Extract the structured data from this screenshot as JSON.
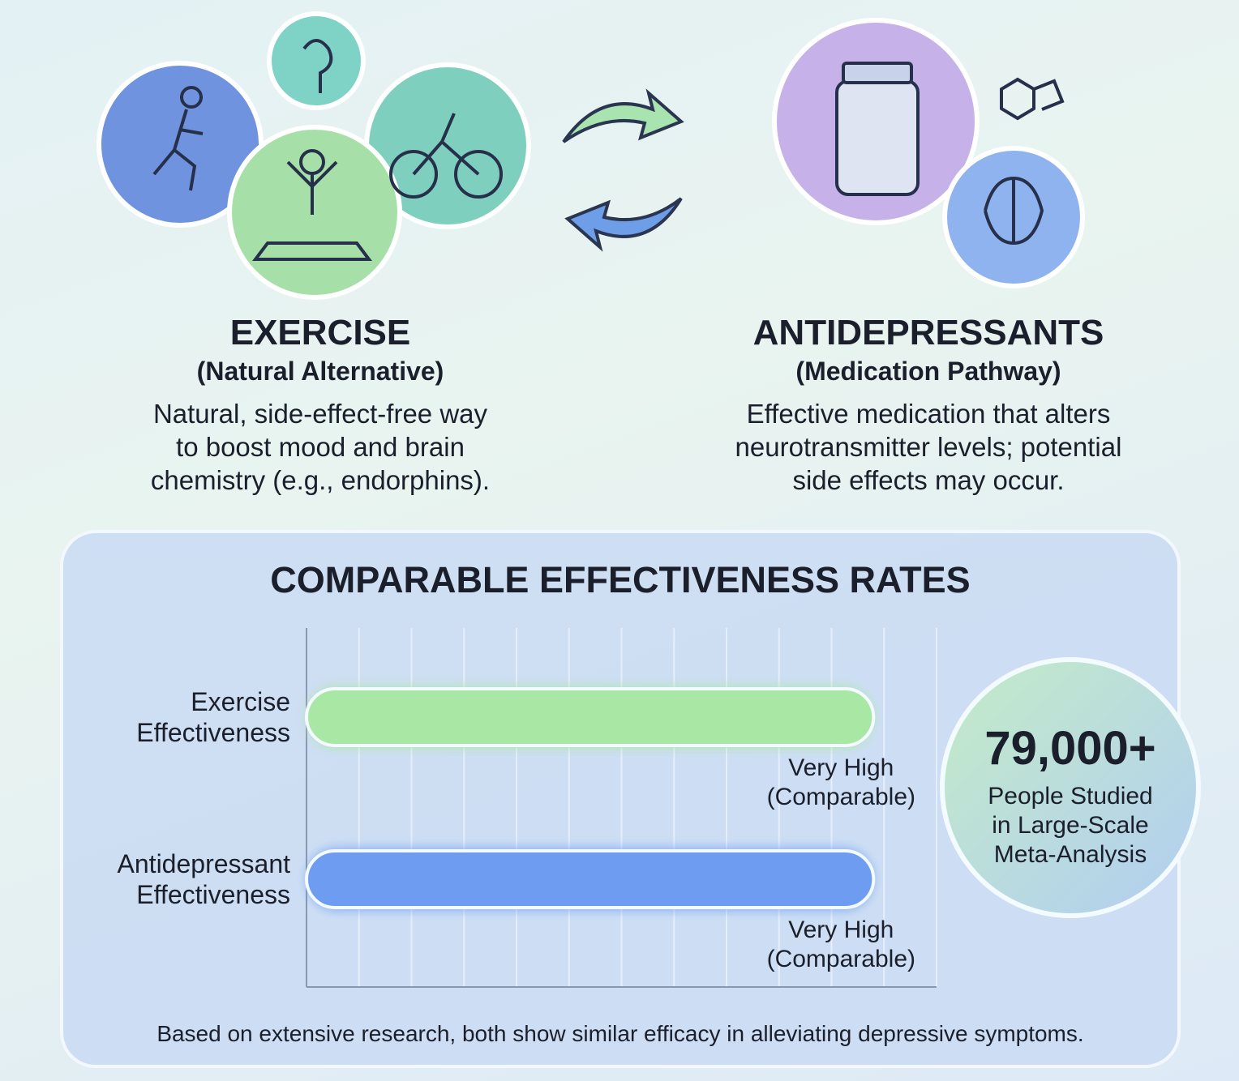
{
  "exercise": {
    "title": "EXERCISE",
    "subtitle": "(Natural Alternative)",
    "description": [
      "Natural, side-effect-free way",
      "to boost mood and brain",
      "chemistry (e.g., endorphins)."
    ]
  },
  "antidepressants": {
    "title": "ANTIDEPRESSANTS",
    "subtitle": "(Medication Pathway)",
    "description": [
      "Effective medication that alters",
      "neurotransmitter levels; potential",
      "side effects may occur."
    ]
  },
  "chart_data": {
    "type": "bar",
    "orientation": "horizontal",
    "title": "COMPARABLE EFFECTIVENESS RATES",
    "categories": [
      "Exercise Effectiveness",
      "Antidepressant Effectiveness"
    ],
    "values": [
      10.8,
      10.8
    ],
    "colors": [
      "#a9e8a4",
      "#6d9cf0"
    ],
    "bar_labels": [
      "Very High (Comparable)",
      "Very High (Comparable)"
    ],
    "xlim": [
      0,
      12
    ],
    "xticks": [
      0,
      1,
      2,
      3,
      4,
      5,
      6,
      7,
      8,
      9,
      10,
      11,
      12
    ],
    "grid": true
  },
  "stat": {
    "value": "79,000+",
    "caption": [
      "People Studied",
      "in Large-Scale",
      "Meta-Analysis"
    ]
  },
  "footer": "Based on extensive research, both show similar efficacy in alleviating depressive symptoms."
}
